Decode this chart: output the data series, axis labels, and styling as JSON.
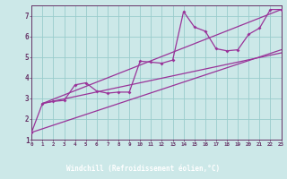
{
  "bg_color": "#cce8e8",
  "plot_bg_color": "#cce8e8",
  "line_color": "#993399",
  "grid_color": "#99cccc",
  "xlabel": "Windchill (Refroidissement éolien,°C)",
  "xlabel_color": "#ffffff",
  "xlabel_bg": "#663366",
  "tick_color": "#663366",
  "spine_color": "#663366",
  "xlim": [
    0,
    23
  ],
  "ylim": [
    1,
    7.5
  ],
  "yticks": [
    1,
    2,
    3,
    4,
    5,
    6,
    7
  ],
  "xtick_labels": [
    "0",
    "1",
    "2",
    "3",
    "4",
    "5",
    "6",
    "7",
    "8",
    "9",
    "10",
    "11",
    "12",
    "13",
    "14",
    "15",
    "16",
    "17",
    "18",
    "19",
    "20",
    "21",
    "22",
    "23"
  ],
  "xtick_vals": [
    0,
    1,
    2,
    3,
    4,
    5,
    6,
    7,
    8,
    9,
    10,
    11,
    12,
    13,
    14,
    15,
    16,
    17,
    18,
    19,
    20,
    21,
    22,
    23
  ],
  "series1_x": [
    0,
    1,
    2,
    3,
    4,
    5,
    6,
    7,
    8,
    9,
    10,
    11,
    12,
    13,
    14,
    15,
    16,
    17,
    18,
    19,
    20,
    21,
    22,
    23
  ],
  "series1_y": [
    1.35,
    2.75,
    2.85,
    2.9,
    3.65,
    3.75,
    3.35,
    3.25,
    3.3,
    3.3,
    4.8,
    4.75,
    4.7,
    4.85,
    7.2,
    6.45,
    6.25,
    5.4,
    5.3,
    5.35,
    6.1,
    6.4,
    7.3,
    7.3
  ],
  "series2_x": [
    1,
    23
  ],
  "series2_y": [
    2.75,
    5.2
  ],
  "series3_x": [
    1,
    23
  ],
  "series3_y": [
    2.75,
    7.3
  ],
  "series4_x": [
    0,
    23
  ],
  "series4_y": [
    1.35,
    5.35
  ]
}
